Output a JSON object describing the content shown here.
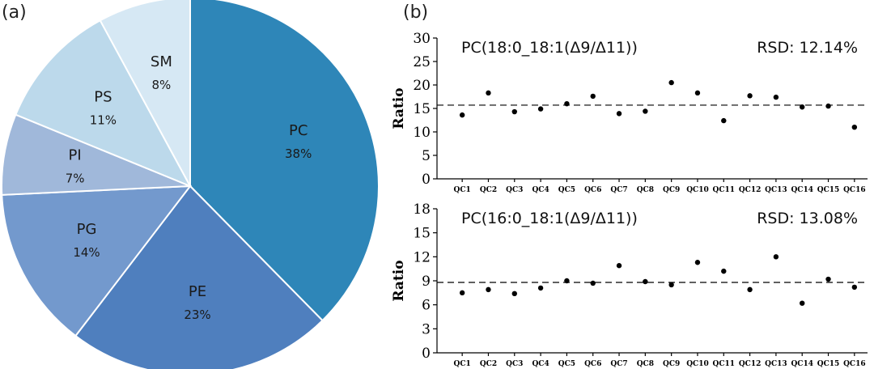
{
  "panels": {
    "a": "(a)",
    "b": "(b)"
  },
  "chart_data": [
    {
      "type": "pie",
      "panel": "(a)",
      "slices": [
        {
          "label": "PC",
          "value": 38,
          "pct_label": "38%",
          "color": "#2e86b8"
        },
        {
          "label": "PE",
          "value": 23,
          "pct_label": "23%",
          "color": "#4f7fbe"
        },
        {
          "label": "PG",
          "value": 14,
          "pct_label": "14%",
          "color": "#7399cd"
        },
        {
          "label": "PI",
          "value": 7,
          "pct_label": "7%",
          "color": "#a0b8da"
        },
        {
          "label": "PS",
          "value": 11,
          "pct_label": "11%",
          "color": "#bcd9eb"
        },
        {
          "label": "SM",
          "value": 8,
          "pct_label": "8%",
          "color": "#d6e8f4"
        }
      ]
    },
    {
      "type": "scatter",
      "panel": "(b)",
      "title": "PC(18:0_18:1(Δ9/Δ11))",
      "annotation": "RSD: 12.14%",
      "ylabel": "Ratio",
      "ylim": [
        0,
        30
      ],
      "yticks": [
        0,
        5,
        10,
        15,
        20,
        25,
        30
      ],
      "categories": [
        "QC1",
        "QC2",
        "QC3",
        "QC4",
        "QC5",
        "QC6",
        "QC7",
        "QC8",
        "QC9",
        "QC10",
        "QC11",
        "QC12",
        "QC13",
        "QC14",
        "QC15",
        "QC16"
      ],
      "values": [
        13.6,
        18.3,
        14.3,
        14.9,
        16.0,
        17.6,
        13.9,
        14.4,
        20.5,
        18.3,
        12.4,
        17.7,
        17.4,
        15.3,
        15.5,
        11.0
      ],
      "mean": 15.7
    },
    {
      "type": "scatter",
      "panel": "(b)",
      "title": "PC(16:0_18:1(Δ9/Δ11))",
      "annotation": "RSD: 13.08%",
      "ylabel": "Ratio",
      "ylim": [
        0,
        18
      ],
      "yticks": [
        0,
        3,
        6,
        9,
        12,
        15,
        18
      ],
      "categories": [
        "QC1",
        "QC2",
        "QC3",
        "QC4",
        "QC5",
        "QC6",
        "QC7",
        "QC8",
        "QC9",
        "QC10",
        "QC11",
        "QC12",
        "QC13",
        "QC14",
        "QC15",
        "QC16"
      ],
      "values": [
        7.5,
        7.9,
        7.4,
        8.1,
        9.0,
        8.7,
        10.9,
        8.9,
        8.5,
        11.3,
        10.2,
        7.9,
        12.0,
        6.2,
        9.2,
        8.2
      ],
      "mean": 8.8
    }
  ]
}
